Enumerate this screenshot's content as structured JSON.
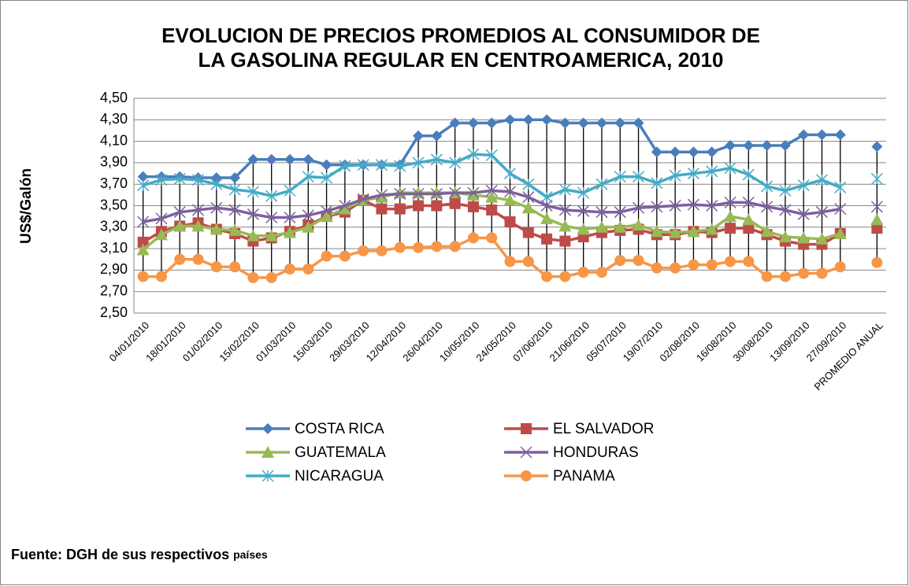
{
  "chart_data": {
    "type": "line",
    "title": "EVOLUCION DE PRECIOS PROMEDIOS AL CONSUMIDOR  DE",
    "title_line2": "LA GASOLINA REGULAR EN CENTROAMERICA, 2010",
    "y_label": "US$/Galón",
    "source": "Fuente: DGH de sus respectivos",
    "source_small": "países",
    "categories": [
      "04/01/2010",
      null,
      "18/01/2010",
      null,
      "01/02/2010",
      null,
      "15/02/2010",
      null,
      "01/03/2010",
      null,
      "15/03/2010",
      null,
      "29/03/2010",
      null,
      "12/04/2010",
      null,
      "26/04/2010",
      null,
      "10/05/2010",
      null,
      "24/05/2010",
      null,
      "07/06/2010",
      null,
      "21/06/2010",
      null,
      "05/07/2010",
      null,
      "19/07/2010",
      null,
      "02/08/2010",
      null,
      "16/08/2010",
      null,
      "30/08/2010",
      null,
      "13/09/2010",
      null,
      "27/09/2010",
      null,
      "PROMEDIO ANUAL"
    ],
    "ylim": [
      2.5,
      4.5
    ],
    "yticks": [
      {
        "value": 2.5,
        "label": "2,50"
      },
      {
        "value": 2.7,
        "label": "2,70"
      },
      {
        "value": 2.9,
        "label": "2,90"
      },
      {
        "value": 3.1,
        "label": "3,10"
      },
      {
        "value": 3.3,
        "label": "3,30"
      },
      {
        "value": 3.5,
        "label": "3,50"
      },
      {
        "value": 3.7,
        "label": "3,70"
      },
      {
        "value": 3.9,
        "label": "3,90"
      },
      {
        "value": 4.1,
        "label": "4,10"
      },
      {
        "value": 4.3,
        "label": "4,30"
      },
      {
        "value": 4.5,
        "label": "4,50"
      }
    ],
    "grid": true,
    "high_low_lines": true,
    "legend": "bottom",
    "series": [
      {
        "name": "COSTA RICA",
        "color": "#4a7ebb",
        "marker": "diamond",
        "values": [
          3.77,
          3.77,
          3.77,
          3.76,
          3.76,
          3.76,
          3.93,
          3.93,
          3.93,
          3.93,
          3.88,
          3.88,
          3.88,
          3.88,
          3.88,
          4.15,
          4.15,
          4.27,
          4.27,
          4.27,
          4.3,
          4.3,
          4.3,
          4.27,
          4.27,
          4.27,
          4.27,
          4.27,
          4.0,
          4.0,
          4.0,
          4.0,
          4.06,
          4.06,
          4.06,
          4.06,
          4.16,
          4.16,
          4.16,
          null,
          4.05
        ]
      },
      {
        "name": "EL SALVADOR",
        "color": "#be4b48",
        "marker": "square",
        "values": [
          3.16,
          3.26,
          3.31,
          3.34,
          3.28,
          3.24,
          3.17,
          3.2,
          3.26,
          3.32,
          3.4,
          3.44,
          3.55,
          3.47,
          3.47,
          3.5,
          3.5,
          3.52,
          3.49,
          3.46,
          3.35,
          3.25,
          3.19,
          3.17,
          3.21,
          3.25,
          3.27,
          3.28,
          3.23,
          3.23,
          3.26,
          3.25,
          3.29,
          3.29,
          3.23,
          3.17,
          3.14,
          3.14,
          3.24,
          null,
          3.29
        ]
      },
      {
        "name": "GUATEMALA",
        "color": "#98b954",
        "marker": "triangle",
        "values": [
          3.09,
          3.23,
          3.31,
          3.31,
          3.28,
          3.27,
          3.22,
          3.22,
          3.25,
          3.3,
          3.4,
          3.47,
          3.55,
          3.58,
          3.62,
          3.62,
          3.62,
          3.62,
          3.6,
          3.58,
          3.55,
          3.48,
          3.38,
          3.31,
          3.28,
          3.3,
          3.3,
          3.32,
          3.26,
          3.25,
          3.26,
          3.28,
          3.4,
          3.37,
          3.26,
          3.21,
          3.2,
          3.19,
          3.24,
          null,
          3.37
        ]
      },
      {
        "name": "HONDURAS",
        "color": "#7d60a0",
        "marker": "x",
        "values": [
          3.35,
          3.38,
          3.44,
          3.46,
          3.48,
          3.46,
          3.42,
          3.39,
          3.39,
          3.41,
          3.45,
          3.5,
          3.56,
          3.6,
          3.61,
          3.61,
          3.61,
          3.62,
          3.62,
          3.64,
          3.63,
          3.58,
          3.5,
          3.46,
          3.45,
          3.44,
          3.44,
          3.48,
          3.49,
          3.5,
          3.51,
          3.5,
          3.53,
          3.53,
          3.49,
          3.46,
          3.42,
          3.44,
          3.47,
          null,
          3.49
        ]
      },
      {
        "name": "NICARAGUA",
        "color": "#46aac5",
        "marker": "star",
        "values": [
          3.69,
          3.74,
          3.75,
          3.74,
          3.7,
          3.65,
          3.63,
          3.59,
          3.64,
          3.77,
          3.76,
          3.87,
          3.88,
          3.88,
          3.87,
          3.9,
          3.93,
          3.9,
          3.98,
          3.97,
          3.8,
          3.7,
          3.58,
          3.65,
          3.62,
          3.7,
          3.77,
          3.77,
          3.71,
          3.78,
          3.8,
          3.82,
          3.85,
          3.79,
          3.68,
          3.64,
          3.69,
          3.74,
          3.67,
          null,
          3.75
        ]
      },
      {
        "name": "PANAMA",
        "color": "#f79646",
        "marker": "circle",
        "values": [
          2.84,
          2.84,
          3.0,
          3.0,
          2.93,
          2.93,
          2.83,
          2.83,
          2.91,
          2.91,
          3.03,
          3.03,
          3.08,
          3.08,
          3.11,
          3.11,
          3.12,
          3.12,
          3.2,
          3.2,
          2.98,
          2.98,
          2.84,
          2.84,
          2.88,
          2.88,
          2.99,
          2.99,
          2.92,
          2.92,
          2.95,
          2.95,
          2.98,
          2.98,
          2.84,
          2.84,
          2.87,
          2.87,
          2.93,
          null,
          2.97
        ]
      }
    ]
  }
}
